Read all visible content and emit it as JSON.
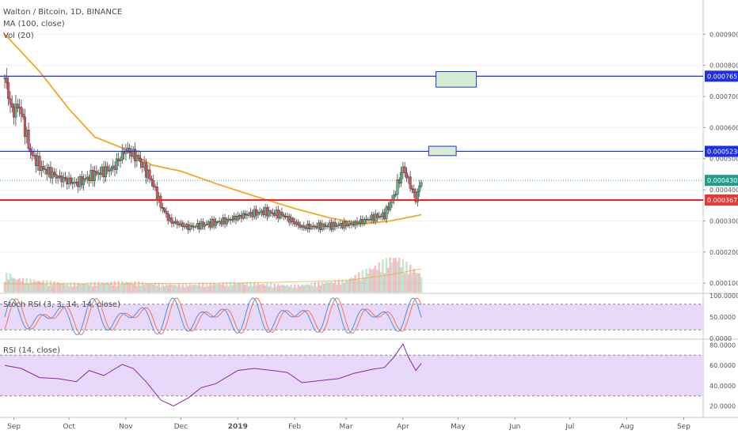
{
  "header": {
    "symbol_title": "Walton / Bitcoin, 1D, BINANCE",
    "ma_legend": "MA (100, close)",
    "vol_legend": "Vol (20)",
    "stoch_legend": "Stoch RSI (3, 3, 14, 14, close)",
    "rsi_legend": "RSI (14, close)"
  },
  "colors": {
    "bull": "#53b987",
    "bear": "#eb4d5c",
    "wick": "#444444",
    "ma": "#f5a623",
    "support_line": "#ff1e1e",
    "resistance_line": "#1e2ee8",
    "last_price": "#1f9e8a",
    "stoch_k": "#4a90e2",
    "stoch_d": "#ff7043",
    "rsi_line": "#8e24aa",
    "band_fill": "#e8d9fb",
    "target_box_fill": "#d6ecd1",
    "target_box_border": "#1e2ee8"
  },
  "chart_data": [
    {
      "type": "candlestick",
      "title": "Walton / Bitcoin, 1D, BINANCE",
      "ylim": [
        7e-05,
        0.00101
      ],
      "yticks": [
        "0.0009000",
        "0.0008000",
        "0.0007000",
        "0.0006000",
        "0.0005000",
        "0.0004000",
        "0.0003000",
        "0.0002000",
        "0.0001000"
      ],
      "x_ticks": [
        "Sep",
        "Oct",
        "Nov",
        "Dec",
        "2019",
        "Feb",
        "Mar",
        "Apr",
        "May",
        "Jun",
        "Jul",
        "Aug",
        "Sep"
      ],
      "price_anchors": [
        {
          "date": "2018-08-27",
          "value": 0.00076
        },
        {
          "date": "2018-08-31",
          "value": 0.00065
        },
        {
          "date": "2018-09-04",
          "value": 0.00067
        },
        {
          "date": "2018-09-10",
          "value": 0.00052
        },
        {
          "date": "2018-09-16",
          "value": 0.00047
        },
        {
          "date": "2018-09-25",
          "value": 0.00044
        },
        {
          "date": "2018-10-05",
          "value": 0.00042
        },
        {
          "date": "2018-10-15",
          "value": 0.00045
        },
        {
          "date": "2018-10-25",
          "value": 0.00047
        },
        {
          "date": "2018-11-01",
          "value": 0.00053
        },
        {
          "date": "2018-11-08",
          "value": 0.0005
        },
        {
          "date": "2018-11-15",
          "value": 0.00043
        },
        {
          "date": "2018-11-20",
          "value": 0.00035
        },
        {
          "date": "2018-11-25",
          "value": 0.0003
        },
        {
          "date": "2018-12-05",
          "value": 0.00028
        },
        {
          "date": "2018-12-15",
          "value": 0.00029
        },
        {
          "date": "2018-12-25",
          "value": 0.0003
        },
        {
          "date": "2019-01-05",
          "value": 0.00032
        },
        {
          "date": "2019-01-15",
          "value": 0.00033
        },
        {
          "date": "2019-01-25",
          "value": 0.00032
        },
        {
          "date": "2019-02-05",
          "value": 0.00028
        },
        {
          "date": "2019-02-20",
          "value": 0.000285
        },
        {
          "date": "2019-03-05",
          "value": 0.00029
        },
        {
          "date": "2019-03-15",
          "value": 0.00031
        },
        {
          "date": "2019-03-22",
          "value": 0.00032
        },
        {
          "date": "2019-03-27",
          "value": 0.00038
        },
        {
          "date": "2019-04-01",
          "value": 0.00047
        },
        {
          "date": "2019-04-04",
          "value": 0.00043
        },
        {
          "date": "2019-04-08",
          "value": 0.00037
        },
        {
          "date": "2019-04-11",
          "value": 0.00043
        }
      ],
      "ma_100": [
        {
          "date": "2018-08-27",
          "value": 0.0009
        },
        {
          "date": "2018-09-15",
          "value": 0.00078
        },
        {
          "date": "2018-10-01",
          "value": 0.00066
        },
        {
          "date": "2018-10-15",
          "value": 0.00057
        },
        {
          "date": "2018-11-01",
          "value": 0.00053
        },
        {
          "date": "2018-11-15",
          "value": 0.00048
        },
        {
          "date": "2018-12-01",
          "value": 0.00046
        },
        {
          "date": "2018-12-20",
          "value": 0.00042
        },
        {
          "date": "2019-01-10",
          "value": 0.00038
        },
        {
          "date": "2019-02-01",
          "value": 0.00034
        },
        {
          "date": "2019-02-20",
          "value": 0.00031
        },
        {
          "date": "2019-03-10",
          "value": 0.00029
        },
        {
          "date": "2019-03-25",
          "value": 0.0003
        },
        {
          "date": "2019-04-11",
          "value": 0.00032
        }
      ],
      "horizontal_levels": [
        {
          "label": "0.0007651",
          "value": 0.0007651,
          "style": "resistance"
        },
        {
          "label": "0.0005236",
          "value": 0.0005236,
          "style": "resistance"
        },
        {
          "label": "0.0004303",
          "value": 0.0004303,
          "style": "last_price"
        },
        {
          "label": "0.0003673",
          "value": 0.0003673,
          "style": "support"
        }
      ],
      "target_boxes": [
        {
          "from": "2019-04-19",
          "to": "2019-05-11",
          "top": 0.00078,
          "bottom": 0.00073
        },
        {
          "from": "2019-04-15",
          "to": "2019-04-30",
          "top": 0.00054,
          "bottom": 0.00051
        }
      ],
      "volume_legend": "Vol (20)",
      "volume_levels": [
        {
          "date": "2018-09-01",
          "value": 0.4
        },
        {
          "date": "2018-10-01",
          "value": 0.25
        },
        {
          "date": "2018-11-01",
          "value": 0.3
        },
        {
          "date": "2018-12-01",
          "value": 0.22
        },
        {
          "date": "2019-01-01",
          "value": 0.28
        },
        {
          "date": "2019-02-01",
          "value": 0.2
        },
        {
          "date": "2019-03-01",
          "value": 0.35
        },
        {
          "date": "2019-03-28",
          "value": 1.0
        },
        {
          "date": "2019-04-11",
          "value": 0.5
        }
      ],
      "volume_ma_levels": [
        {
          "date": "2018-08-27",
          "value": 0.22
        },
        {
          "date": "2018-11-01",
          "value": 0.22
        },
        {
          "date": "2019-01-01",
          "value": 0.24
        },
        {
          "date": "2019-03-01",
          "value": 0.3
        },
        {
          "date": "2019-03-25",
          "value": 0.45
        },
        {
          "date": "2019-04-11",
          "value": 0.6
        }
      ]
    },
    {
      "type": "line",
      "title": "Stoch RSI (3, 3, 14, 14, close)",
      "ylim": [
        0,
        100
      ],
      "yticks": [
        "100.0000",
        "50.0000",
        "0.0000"
      ],
      "band": [
        20,
        80
      ]
    },
    {
      "type": "line",
      "title": "RSI (14, close)",
      "ylim": [
        15,
        85
      ],
      "yticks": [
        "80.0000",
        "60.0000",
        "40.0000",
        "20.0000"
      ],
      "band": [
        30,
        70
      ],
      "values": [
        {
          "date": "2018-08-27",
          "value": 60
        },
        {
          "date": "2018-09-05",
          "value": 57
        },
        {
          "date": "2018-09-15",
          "value": 48
        },
        {
          "date": "2018-09-25",
          "value": 47
        },
        {
          "date": "2018-10-05",
          "value": 44
        },
        {
          "date": "2018-10-12",
          "value": 55
        },
        {
          "date": "2018-10-20",
          "value": 50
        },
        {
          "date": "2018-10-30",
          "value": 61
        },
        {
          "date": "2018-11-05",
          "value": 57
        },
        {
          "date": "2018-11-12",
          "value": 44
        },
        {
          "date": "2018-11-20",
          "value": 26
        },
        {
          "date": "2018-11-27",
          "value": 20
        },
        {
          "date": "2018-12-05",
          "value": 28
        },
        {
          "date": "2018-12-12",
          "value": 38
        },
        {
          "date": "2018-12-20",
          "value": 42
        },
        {
          "date": "2019-01-01",
          "value": 55
        },
        {
          "date": "2019-01-10",
          "value": 57
        },
        {
          "date": "2019-01-20",
          "value": 55
        },
        {
          "date": "2019-01-28",
          "value": 53
        },
        {
          "date": "2019-02-05",
          "value": 43
        },
        {
          "date": "2019-02-15",
          "value": 45
        },
        {
          "date": "2019-02-25",
          "value": 47
        },
        {
          "date": "2019-03-05",
          "value": 52
        },
        {
          "date": "2019-03-15",
          "value": 56
        },
        {
          "date": "2019-03-22",
          "value": 58
        },
        {
          "date": "2019-03-27",
          "value": 68
        },
        {
          "date": "2019-04-01",
          "value": 81
        },
        {
          "date": "2019-04-04",
          "value": 68
        },
        {
          "date": "2019-04-08",
          "value": 55
        },
        {
          "date": "2019-04-11",
          "value": 62
        }
      ]
    }
  ]
}
